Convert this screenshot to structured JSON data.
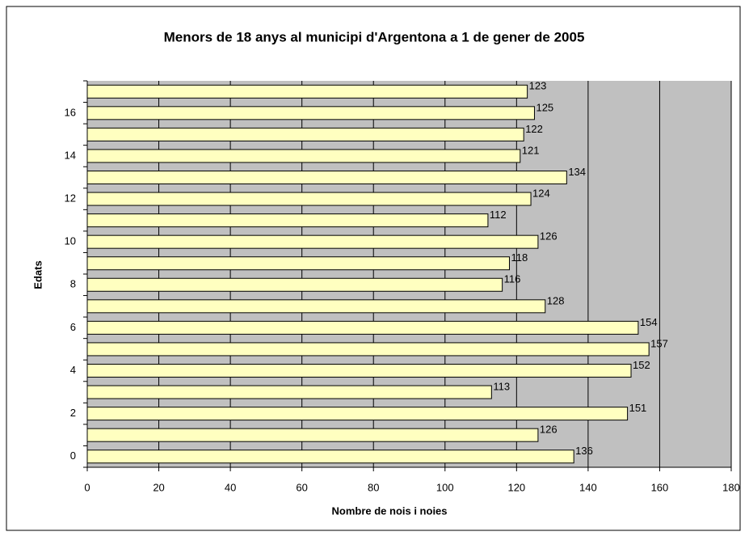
{
  "chart_data": {
    "type": "bar",
    "orientation": "horizontal",
    "title": "Menors de 18 anys al municipi d'Argentona a 1 de gener de 2005",
    "x_label": "Nombre de nois i noies",
    "y_label": "Edats",
    "categories": [
      "0",
      null,
      "2",
      null,
      "4",
      null,
      "6",
      null,
      "8",
      null,
      "10",
      null,
      "12",
      null,
      "14",
      null,
      "16",
      null
    ],
    "values": [
      136,
      126,
      151,
      113,
      152,
      157,
      154,
      128,
      116,
      118,
      126,
      112,
      124,
      134,
      121,
      122,
      125,
      123
    ],
    "color": "#ffffc0",
    "xlim": [
      0,
      180
    ],
    "xticks": [
      0,
      20,
      40,
      60,
      80,
      100,
      120,
      140,
      160,
      180
    ],
    "grid": true
  }
}
